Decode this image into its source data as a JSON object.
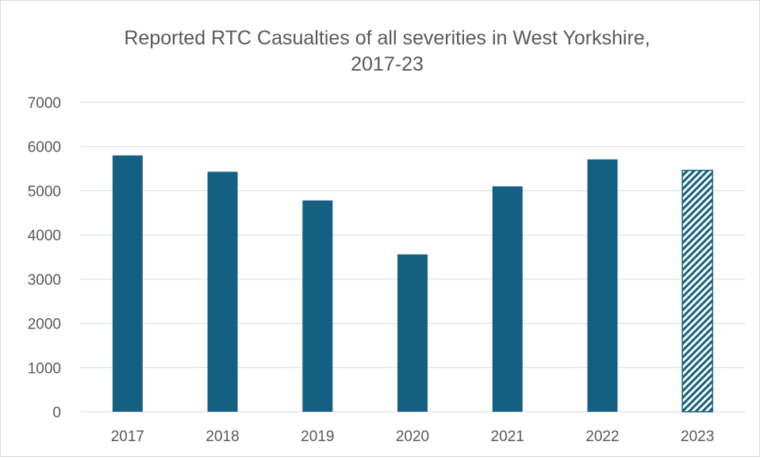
{
  "chart_data": {
    "type": "bar",
    "title_lines": [
      "Reported RTC Casualties of all severities in West Yorkshire,",
      "2017-23"
    ],
    "categories": [
      "2017",
      "2018",
      "2019",
      "2020",
      "2021",
      "2022",
      "2023"
    ],
    "series": [
      {
        "values": [
          5800,
          5430,
          4780,
          3560,
          5100,
          5710,
          5460
        ],
        "color": "#156082",
        "hatched_categories": [
          "2023"
        ]
      }
    ],
    "y_ticks": [
      "0",
      "1000",
      "2000",
      "3000",
      "4000",
      "5000",
      "6000",
      "7000"
    ],
    "ylim": [
      0,
      7000
    ],
    "grid": true,
    "legend": "none",
    "gridline_color": "#d9d9d9",
    "text_color": "#595959"
  }
}
